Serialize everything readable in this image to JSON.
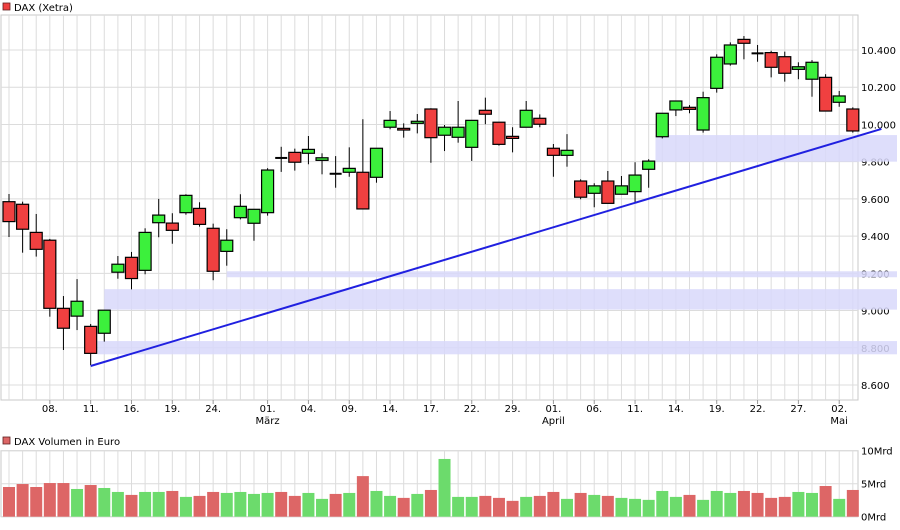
{
  "chart_data": [
    {
      "type": "candlestick",
      "title": "DAX (Xetra)",
      "legend_color": "#f04040",
      "up_color": "#3cf03c",
      "down_color": "#f04040",
      "ylim": [
        8500,
        10560
      ],
      "yticks": [
        10400,
        10200,
        10000,
        9800,
        9600,
        9400,
        9200,
        9000,
        8800,
        8600
      ],
      "ytick_labels": [
        "10.400",
        "10.200",
        "10.000",
        "9.800",
        "9.600",
        "9.400",
        "9.200",
        "9.000",
        "8.800",
        "8.600"
      ],
      "xtick_labels": [
        {
          "index": 3,
          "label": "08."
        },
        {
          "index": 6,
          "label": "11."
        },
        {
          "index": 9,
          "label": "16."
        },
        {
          "index": 12,
          "label": "19."
        },
        {
          "index": 15,
          "label": "24."
        },
        {
          "index": 19,
          "label": "01.",
          "month": "März"
        },
        {
          "index": 22,
          "label": "04."
        },
        {
          "index": 25,
          "label": "09."
        },
        {
          "index": 28,
          "label": "14."
        },
        {
          "index": 31,
          "label": "17."
        },
        {
          "index": 34,
          "label": "22."
        },
        {
          "index": 37,
          "label": "29."
        },
        {
          "index": 40,
          "label": "01.",
          "month": "April"
        },
        {
          "index": 43,
          "label": "06."
        },
        {
          "index": 46,
          "label": "11."
        },
        {
          "index": 49,
          "label": "14."
        },
        {
          "index": 52,
          "label": "19."
        },
        {
          "index": 55,
          "label": "22."
        },
        {
          "index": 58,
          "label": "27."
        },
        {
          "index": 61,
          "label": "02.",
          "month": "Mai"
        }
      ],
      "ohlc": [
        [
          9585,
          9626,
          9395,
          9478
        ],
        [
          9571,
          9585,
          9311,
          9437
        ],
        [
          9420,
          9519,
          9290,
          9329
        ],
        [
          9378,
          9385,
          8967,
          9012
        ],
        [
          9012,
          9078,
          8788,
          8905
        ],
        [
          8970,
          9169,
          8895,
          9050
        ],
        [
          8915,
          8928,
          8707,
          8770
        ],
        [
          8878,
          9002,
          8833,
          9002
        ],
        [
          9206,
          9293,
          9171,
          9249
        ],
        [
          9286,
          9315,
          9114,
          9172
        ],
        [
          9216,
          9442,
          9195,
          9420
        ],
        [
          9472,
          9600,
          9394,
          9513
        ],
        [
          9470,
          9523,
          9359,
          9431
        ],
        [
          9526,
          9625,
          9515,
          9619
        ],
        [
          9549,
          9582,
          9451,
          9463
        ],
        [
          9442,
          9467,
          9163,
          9211
        ],
        [
          9318,
          9437,
          9241,
          9378
        ],
        [
          9499,
          9625,
          9490,
          9560
        ],
        [
          9469,
          9544,
          9375,
          9544
        ],
        [
          9526,
          9765,
          9510,
          9755
        ],
        [
          9820,
          9880,
          9745,
          9820
        ],
        [
          9850,
          9870,
          9752,
          9797
        ],
        [
          9845,
          9938,
          9786,
          9866
        ],
        [
          9807,
          9845,
          9732,
          9821
        ],
        [
          9735,
          9830,
          9660,
          9735
        ],
        [
          9743,
          9877,
          9719,
          9764
        ],
        [
          9743,
          10028,
          9546,
          9546
        ],
        [
          9716,
          9872,
          9687,
          9872
        ],
        [
          9985,
          10072,
          9974,
          10022
        ],
        [
          9979,
          10006,
          9929,
          9970
        ],
        [
          10006,
          10056,
          9952,
          10017
        ],
        [
          10083,
          10087,
          9794,
          9929
        ],
        [
          9942,
          9997,
          9857,
          9985
        ],
        [
          9931,
          10126,
          9902,
          9985
        ],
        [
          9877,
          10022,
          9804,
          10022
        ],
        [
          10076,
          10144,
          10001,
          10055
        ],
        [
          10012,
          10012,
          9886,
          9893
        ],
        [
          9936,
          9985,
          9850,
          9925
        ],
        [
          9985,
          10126,
          9985,
          10076
        ],
        [
          10033,
          10054,
          9985,
          10001
        ],
        [
          9872,
          9895,
          9719,
          9834
        ],
        [
          9834,
          9948,
          9773,
          9861
        ],
        [
          9696,
          9705,
          9598,
          9609
        ],
        [
          9630,
          9684,
          9555,
          9670
        ],
        [
          9696,
          9750,
          9576,
          9576
        ],
        [
          9625,
          9723,
          9625,
          9670
        ],
        [
          9639,
          9797,
          9576,
          9728
        ],
        [
          9759,
          9813,
          9660,
          9803
        ],
        [
          9934,
          10060,
          9925,
          10060
        ],
        [
          10078,
          10126,
          10045,
          10126
        ],
        [
          10092,
          10104,
          10060,
          10081
        ],
        [
          9970,
          10176,
          9956,
          10144
        ],
        [
          10194,
          10377,
          10171,
          10361
        ],
        [
          10325,
          10441,
          10316,
          10427
        ],
        [
          10457,
          10475,
          10350,
          10436
        ],
        [
          10382,
          10427,
          10337,
          10382
        ],
        [
          10386,
          10396,
          10253,
          10307
        ],
        [
          10364,
          10391,
          10230,
          10275
        ],
        [
          10296,
          10334,
          10243,
          10310
        ],
        [
          10243,
          10346,
          10149,
          10334
        ],
        [
          10253,
          10270,
          10072,
          10072
        ],
        [
          10119,
          10180,
          10095,
          10153
        ],
        [
          10083,
          10092,
          9956,
          9965
        ]
      ],
      "zones": [
        {
          "from_index": 16,
          "low": 9179,
          "high": 9211,
          "color": "#d8d8fa"
        },
        {
          "from_index": 7,
          "low": 9005,
          "high": 9115,
          "color": "#d8d8fa"
        },
        {
          "from_index": 6.5,
          "low": 8765,
          "high": 8836,
          "color": "#d8d8fa"
        },
        {
          "from_index": 47.5,
          "low": 9800,
          "high": 9943,
          "color": "#d8d8fa"
        }
      ],
      "trendline": {
        "start_index": 6,
        "start_price": 8702,
        "end_index": 64.1,
        "end_price": 9976,
        "color": "#2020e0"
      }
    },
    {
      "type": "bar",
      "title": "DAX Volumen in Euro",
      "legend_color": "#dd6666",
      "up_color": "#6cdb6c",
      "down_color": "#dd6666",
      "ylim": [
        0,
        10
      ],
      "yticks": [
        10,
        5,
        0
      ],
      "ytick_labels": [
        "10Mrd",
        "5Mrd",
        "0Mrd"
      ],
      "unit": "Mrd",
      "values": [
        4.5,
        4.95,
        4.5,
        5.1,
        5.1,
        4.2,
        4.8,
        4.35,
        3.75,
        3.3,
        3.75,
        3.75,
        3.9,
        3.0,
        3.15,
        3.75,
        3.6,
        3.75,
        3.45,
        3.6,
        3.75,
        3.15,
        3.6,
        2.7,
        3.45,
        3.6,
        6.15,
        3.9,
        3.15,
        2.85,
        3.45,
        4.05,
        8.75,
        3.0,
        3.0,
        3.15,
        2.85,
        2.4,
        3.0,
        3.15,
        3.75,
        2.7,
        3.6,
        3.3,
        3.15,
        2.85,
        2.7,
        2.55,
        3.9,
        3.0,
        3.3,
        2.55,
        3.9,
        3.6,
        3.9,
        3.6,
        2.85,
        3.0,
        3.75,
        3.6,
        4.65,
        2.7,
        4.05
      ]
    }
  ]
}
